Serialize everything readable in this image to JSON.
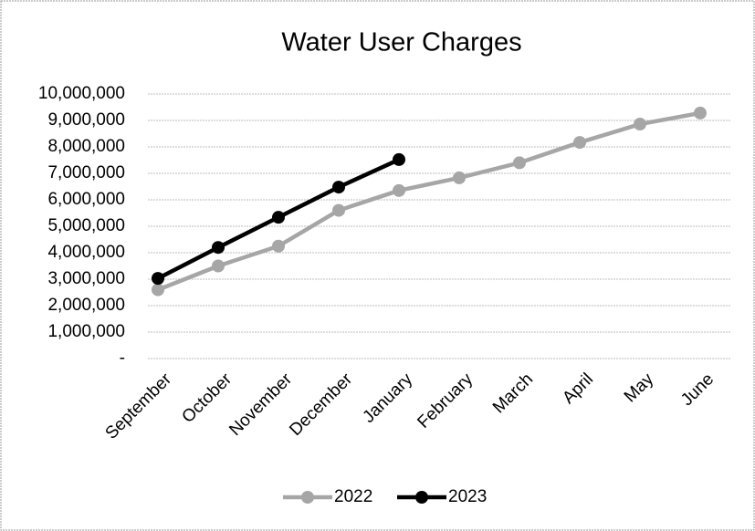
{
  "chart_data": {
    "type": "line",
    "title": "Water User Charges",
    "categories": [
      "September",
      "October",
      "November",
      "December",
      "January",
      "February",
      "March",
      "April",
      "May",
      "June"
    ],
    "series": [
      {
        "name": "2022",
        "color": "#a6a6a6",
        "values": [
          2600000,
          3500000,
          4250000,
          5600000,
          6350000,
          6830000,
          7400000,
          8170000,
          8860000,
          9280000
        ]
      },
      {
        "name": "2023",
        "color": "#000000",
        "values": [
          3030000,
          4200000,
          5340000,
          6480000,
          7520000,
          null,
          null,
          null,
          null,
          null
        ]
      }
    ],
    "ylim": [
      0,
      10000000
    ],
    "yticks": [
      {
        "value": 0,
        "label": "-"
      },
      {
        "value": 1000000,
        "label": "1,000,000"
      },
      {
        "value": 2000000,
        "label": "2,000,000"
      },
      {
        "value": 3000000,
        "label": "3,000,000"
      },
      {
        "value": 4000000,
        "label": "4,000,000"
      },
      {
        "value": 5000000,
        "label": "5,000,000"
      },
      {
        "value": 6000000,
        "label": "6,000,000"
      },
      {
        "value": 7000000,
        "label": "7,000,000"
      },
      {
        "value": 8000000,
        "label": "8,000,000"
      },
      {
        "value": 9000000,
        "label": "9,000,000"
      },
      {
        "value": 10000000,
        "label": "10,000,000"
      }
    ],
    "grid": true,
    "legend": "bottom"
  }
}
